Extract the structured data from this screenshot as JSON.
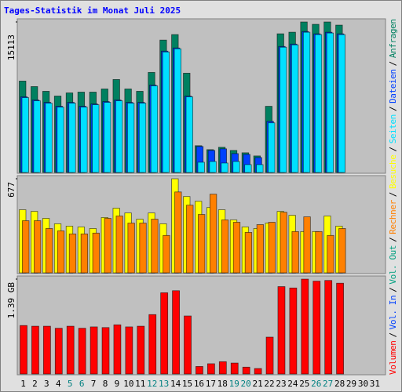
{
  "chart_data": [
    {
      "type": "bar",
      "title": "Tages-Statistik im Monat Juli 2025",
      "ylim": [
        0,
        15113
      ],
      "yticks": [
        15113
      ],
      "series": [
        {
          "name": "Anfragen",
          "color": "#008060",
          "values": [
            9178,
            8624,
            8150,
            7675,
            7991,
            8070,
            8070,
            8387,
            9336,
            8387,
            8150,
            10048,
            13292,
            13846,
            9969,
            2690,
            2294,
            2532,
            2215,
            1978,
            1662,
            6646,
            13925,
            14083,
            15113,
            14875,
            15113,
            14795,
            null,
            null,
            null
          ]
        },
        {
          "name": "Dateien",
          "color": "#0040ff",
          "values": [
            7600,
            7280,
            7040,
            6650,
            7040,
            6650,
            6880,
            7120,
            7280,
            7040,
            7040,
            8780,
            12180,
            12500,
            7670,
            2611,
            2215,
            2373,
            1898,
            1819,
            1503,
            5142,
            12650,
            12890,
            14150,
            13920,
            14080,
            13920,
            null,
            null,
            null
          ]
        },
        {
          "name": "Seiten",
          "color": "#00e0ff",
          "values": [
            7515,
            7198,
            6961,
            6565,
            6961,
            6565,
            6803,
            7040,
            7198,
            6961,
            6961,
            8701,
            12102,
            12419,
            7594,
            1028,
            1107,
            949,
            1107,
            791,
            791,
            4983,
            12577,
            12814,
            14080,
            13843,
            14001,
            13843,
            null,
            null,
            null
          ]
        }
      ]
    },
    {
      "type": "bar",
      "ylim": [
        0,
        677
      ],
      "yticks": [
        677
      ],
      "series": [
        {
          "name": "Besuche",
          "color": "#ffff00",
          "values": [
            454,
            442,
            392,
            353,
            336,
            330,
            319,
            398,
            465,
            431,
            386,
            431,
            353,
            677,
            549,
            515,
            470,
            454,
            381,
            330,
            319,
            358,
            442,
            414,
            297,
            297,
            409,
            336,
            null,
            null,
            null
          ]
        },
        {
          "name": "Rechner",
          "color": "#ff8000",
          "values": [
            375,
            375,
            319,
            302,
            280,
            280,
            286,
            392,
            409,
            358,
            358,
            386,
            269,
            582,
            487,
            420,
            566,
            381,
            364,
            291,
            347,
            364,
            436,
            297,
            403,
            297,
            269,
            319,
            null,
            null,
            null
          ]
        }
      ]
    },
    {
      "type": "bar",
      "ylim": [
        0,
        1.39
      ],
      "yticks": [
        {
          "value": 1.39,
          "label": "1.39 GB"
        }
      ],
      "categories": [
        "1",
        "2",
        "3",
        "4",
        "5",
        "6",
        "7",
        "8",
        "9",
        "10",
        "11",
        "12",
        "13",
        "14",
        "15",
        "16",
        "17",
        "18",
        "19",
        "20",
        "21",
        "22",
        "23",
        "24",
        "25",
        "26",
        "27",
        "28",
        "29",
        "30",
        "31"
      ],
      "category_colors": [
        "#000000",
        "#000000",
        "#000000",
        "#000000",
        "#008080",
        "#008080",
        "#000000",
        "#000000",
        "#000000",
        "#000000",
        "#000000",
        "#008080",
        "#008080",
        "#000000",
        "#000000",
        "#000000",
        "#000000",
        "#000000",
        "#008080",
        "#008080",
        "#000000",
        "#000000",
        "#000000",
        "#000000",
        "#000000",
        "#008080",
        "#008080",
        "#000000",
        "#000000",
        "#000000",
        "#000000"
      ],
      "series": [
        {
          "name": "Vol. Out",
          "color": "#00a080",
          "values": [
            null,
            null,
            null,
            null,
            null,
            null,
            null,
            null,
            null,
            null,
            null,
            null,
            null,
            null,
            null,
            null,
            null,
            null,
            null,
            null,
            null,
            null,
            null,
            null,
            null,
            null,
            null,
            null,
            null,
            null,
            null
          ]
        },
        {
          "name": "Vol. In",
          "color": "#0040ff",
          "values": [
            null,
            null,
            null,
            null,
            null,
            null,
            null,
            null,
            null,
            null,
            null,
            null,
            null,
            null,
            null,
            null,
            null,
            null,
            null,
            null,
            null,
            null,
            null,
            null,
            null,
            null,
            null,
            null,
            null,
            null,
            null
          ]
        },
        {
          "name": "Volumen",
          "color": "#ff0000",
          "values": [
            0.71,
            0.7,
            0.7,
            0.67,
            0.7,
            0.67,
            0.69,
            0.68,
            0.72,
            0.69,
            0.7,
            0.87,
            1.19,
            1.22,
            0.85,
            0.11,
            0.15,
            0.18,
            0.16,
            0.1,
            0.08,
            0.54,
            1.28,
            1.26,
            1.39,
            1.36,
            1.37,
            1.33,
            null,
            null,
            null
          ]
        }
      ]
    }
  ],
  "legend_separator": "/"
}
